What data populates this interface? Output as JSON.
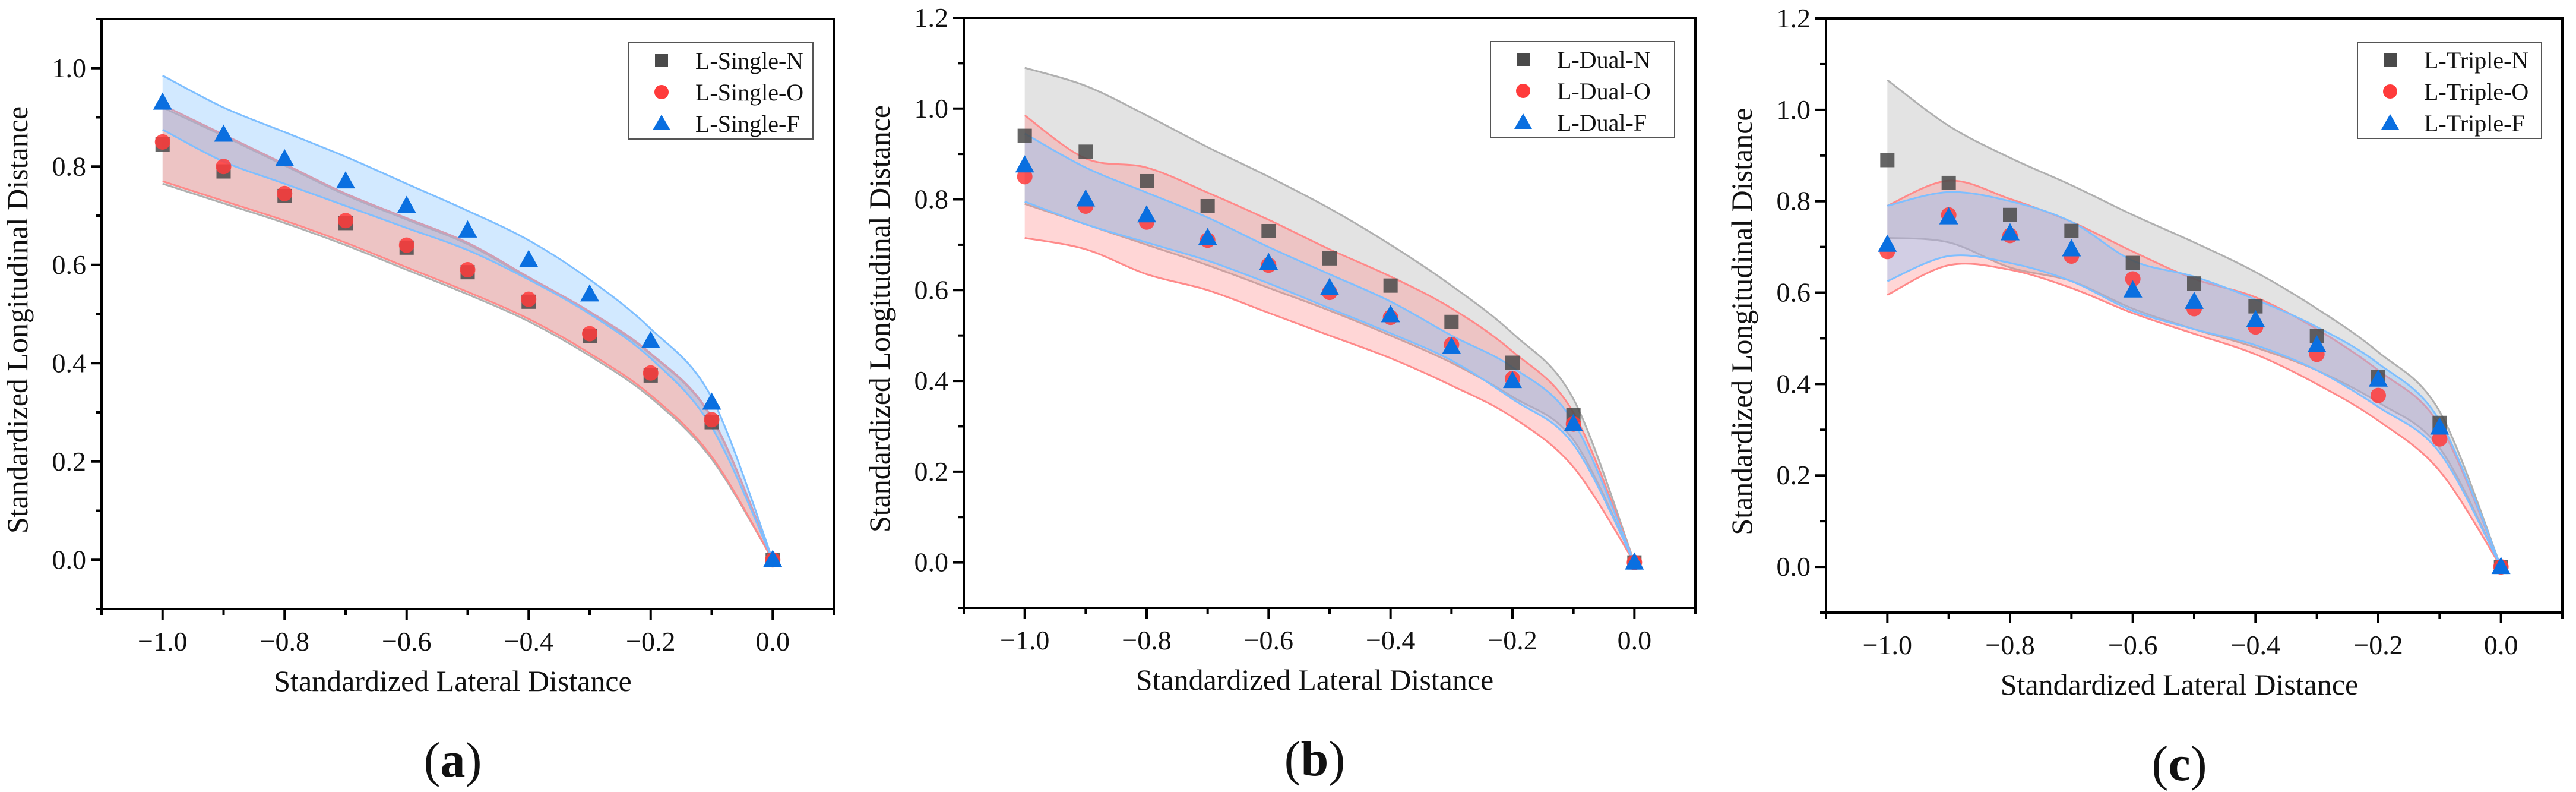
{
  "chart_data": [
    {
      "type": "scatter",
      "panel_label": "(a)",
      "panel_letter": "a",
      "xlabel": "Standardized Lateral Distance",
      "ylabel": "Standardized Longitudinal Distance",
      "xlim": [
        -1.1,
        0.1
      ],
      "ylim": [
        -0.1,
        1.1
      ],
      "xticks": [
        "−1.0",
        "−0.8",
        "−0.6",
        "−0.4",
        "−0.2",
        "0.0"
      ],
      "yticks": [
        "0.0",
        "0.2",
        "0.4",
        "0.6",
        "0.8",
        "1.0"
      ],
      "legend_position": "top-right",
      "grid": false,
      "x": [
        -1.0,
        -0.9,
        -0.8,
        -0.7,
        -0.6,
        -0.5,
        -0.4,
        -0.3,
        -0.2,
        -0.1,
        0.0
      ],
      "series": [
        {
          "name": "L-Single-N",
          "marker": "square",
          "color": "#4a4a4a",
          "band_color": "#b0b0b0",
          "values": [
            0.845,
            0.79,
            0.74,
            0.685,
            0.635,
            0.585,
            0.525,
            0.455,
            0.375,
            0.28,
            0.0
          ],
          "band_upper": [
            0.92,
            0.862,
            0.802,
            0.742,
            0.692,
            0.642,
            0.572,
            0.502,
            0.418,
            0.288,
            0.0
          ],
          "band_lower": [
            0.765,
            0.725,
            0.685,
            0.64,
            0.59,
            0.54,
            0.485,
            0.415,
            0.33,
            0.205,
            0.0
          ]
        },
        {
          "name": "L-Single-O",
          "marker": "circle",
          "color": "#ff3b3b",
          "band_color": "#ff8a8a",
          "values": [
            0.85,
            0.8,
            0.745,
            0.69,
            0.64,
            0.59,
            0.53,
            0.46,
            0.38,
            0.285,
            0.0
          ],
          "band_upper": [
            0.925,
            0.865,
            0.805,
            0.745,
            0.695,
            0.645,
            0.575,
            0.505,
            0.42,
            0.29,
            0.0
          ],
          "band_lower": [
            0.77,
            0.73,
            0.69,
            0.645,
            0.595,
            0.545,
            0.49,
            0.42,
            0.335,
            0.21,
            0.0
          ]
        },
        {
          "name": "L-Single-F",
          "marker": "triangle",
          "color": "#0a6fe0",
          "band_color": "#7fbfff",
          "values": [
            0.93,
            0.865,
            0.815,
            0.77,
            0.72,
            0.67,
            0.61,
            0.54,
            0.445,
            0.32,
            0.0
          ],
          "band_upper": [
            0.985,
            0.92,
            0.87,
            0.82,
            0.765,
            0.71,
            0.65,
            0.57,
            0.47,
            0.33,
            0.0
          ],
          "band_lower": [
            0.875,
            0.81,
            0.765,
            0.72,
            0.675,
            0.63,
            0.57,
            0.5,
            0.41,
            0.27,
            0.0
          ]
        }
      ]
    },
    {
      "type": "scatter",
      "panel_label": "(b)",
      "panel_letter": "b",
      "xlabel": "Standardized Lateral Distance",
      "ylabel": "Standardized Longitudinal Distance",
      "xlim": [
        -1.1,
        0.1
      ],
      "ylim": [
        -0.1,
        1.2
      ],
      "xticks": [
        "−1.0",
        "−0.8",
        "−0.6",
        "−0.4",
        "−0.2",
        "0.0"
      ],
      "yticks": [
        "0.0",
        "0.2",
        "0.4",
        "0.6",
        "0.8",
        "1.0",
        "1.2"
      ],
      "legend_position": "top-right",
      "grid": false,
      "x": [
        -1.0,
        -0.9,
        -0.8,
        -0.7,
        -0.6,
        -0.5,
        -0.4,
        -0.3,
        -0.2,
        -0.1,
        0.0
      ],
      "series": [
        {
          "name": "L-Dual-N",
          "marker": "square",
          "color": "#4a4a4a",
          "band_color": "#b0b0b0",
          "values": [
            0.94,
            0.905,
            0.84,
            0.785,
            0.73,
            0.67,
            0.61,
            0.53,
            0.44,
            0.325,
            0.0
          ],
          "band_upper": [
            1.09,
            1.05,
            0.985,
            0.915,
            0.85,
            0.78,
            0.7,
            0.61,
            0.505,
            0.36,
            0.0
          ],
          "band_lower": [
            0.79,
            0.745,
            0.7,
            0.655,
            0.605,
            0.555,
            0.5,
            0.44,
            0.365,
            0.27,
            0.0
          ]
        },
        {
          "name": "L-Dual-O",
          "marker": "circle",
          "color": "#ff3b3b",
          "band_color": "#ff8a8a",
          "values": [
            0.85,
            0.785,
            0.75,
            0.71,
            0.655,
            0.595,
            0.54,
            0.48,
            0.405,
            0.305,
            0.0
          ],
          "band_upper": [
            0.985,
            0.89,
            0.87,
            0.815,
            0.755,
            0.69,
            0.63,
            0.56,
            0.465,
            0.33,
            0.0
          ],
          "band_lower": [
            0.715,
            0.69,
            0.635,
            0.6,
            0.55,
            0.5,
            0.45,
            0.39,
            0.32,
            0.21,
            0.0
          ]
        },
        {
          "name": "L-Dual-F",
          "marker": "triangle",
          "color": "#0a6fe0",
          "band_color": "#7fbfff",
          "values": [
            0.875,
            0.8,
            0.765,
            0.715,
            0.66,
            0.605,
            0.545,
            0.475,
            0.4,
            0.305,
            0.0
          ],
          "band_upper": [
            0.945,
            0.87,
            0.815,
            0.76,
            0.695,
            0.635,
            0.575,
            0.5,
            0.43,
            0.31,
            0.0
          ],
          "band_lower": [
            0.795,
            0.745,
            0.705,
            0.665,
            0.615,
            0.56,
            0.505,
            0.445,
            0.36,
            0.26,
            0.0
          ]
        }
      ]
    },
    {
      "type": "scatter",
      "panel_label": "(c)",
      "panel_letter": "c",
      "xlabel": "Standardized Lateral Distance",
      "ylabel": "Standardized Longitudinal Distance",
      "xlim": [
        -1.1,
        0.1
      ],
      "ylim": [
        -0.1,
        1.2
      ],
      "xticks": [
        "−1.0",
        "−0.8",
        "−0.6",
        "−0.4",
        "−0.2",
        "0.0"
      ],
      "yticks": [
        "0.0",
        "0.2",
        "0.4",
        "0.6",
        "0.8",
        "1.0",
        "1.2"
      ],
      "legend_position": "top-right",
      "grid": false,
      "x": [
        -1.0,
        -0.9,
        -0.8,
        -0.7,
        -0.6,
        -0.5,
        -0.4,
        -0.3,
        -0.2,
        -0.1,
        0.0
      ],
      "series": [
        {
          "name": "L-Triple-N",
          "marker": "square",
          "color": "#4a4a4a",
          "band_color": "#b0b0b0",
          "values": [
            0.89,
            0.84,
            0.77,
            0.735,
            0.665,
            0.62,
            0.57,
            0.505,
            0.415,
            0.315,
            0.0
          ],
          "band_upper": [
            1.065,
            0.965,
            0.895,
            0.835,
            0.77,
            0.71,
            0.645,
            0.565,
            0.47,
            0.34,
            0.0
          ],
          "band_lower": [
            0.72,
            0.71,
            0.655,
            0.625,
            0.565,
            0.52,
            0.48,
            0.43,
            0.36,
            0.26,
            0.0
          ]
        },
        {
          "name": "L-Triple-O",
          "marker": "circle",
          "color": "#ff3b3b",
          "band_color": "#ff8a8a",
          "values": [
            0.69,
            0.77,
            0.725,
            0.68,
            0.63,
            0.565,
            0.525,
            0.465,
            0.375,
            0.28,
            0.0
          ],
          "band_upper": [
            0.79,
            0.845,
            0.805,
            0.755,
            0.69,
            0.63,
            0.59,
            0.52,
            0.43,
            0.31,
            0.0
          ],
          "band_lower": [
            0.595,
            0.66,
            0.65,
            0.61,
            0.555,
            0.51,
            0.465,
            0.4,
            0.32,
            0.21,
            0.0
          ]
        },
        {
          "name": "L-Triple-F",
          "marker": "triangle",
          "color": "#0a6fe0",
          "band_color": "#7fbfff",
          "values": [
            0.705,
            0.765,
            0.73,
            0.695,
            0.605,
            0.58,
            0.54,
            0.485,
            0.41,
            0.305,
            0.0
          ],
          "band_upper": [
            0.79,
            0.82,
            0.8,
            0.755,
            0.67,
            0.635,
            0.585,
            0.525,
            0.445,
            0.32,
            0.0
          ],
          "band_lower": [
            0.625,
            0.68,
            0.665,
            0.625,
            0.56,
            0.52,
            0.485,
            0.43,
            0.35,
            0.25,
            0.0
          ]
        }
      ]
    }
  ]
}
